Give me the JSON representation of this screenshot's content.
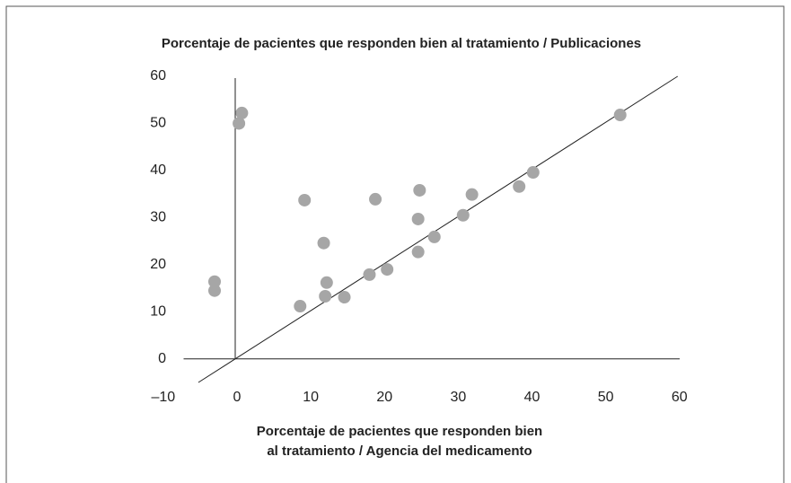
{
  "chart_data": {
    "type": "scatter",
    "title": "Porcentaje de pacientes que responden bien al tratamiento / Publicaciones",
    "xlabel": [
      "Porcentaje de pacientes que responden bien",
      "al tratamiento / Agencia del medicamento"
    ],
    "xlim": [
      -7,
      61
    ],
    "ylim": [
      -5,
      60
    ],
    "xticks": [
      {
        "value": -10,
        "label": "–10"
      },
      0,
      10,
      20,
      30,
      40,
      50,
      60
    ],
    "yticks": [
      0,
      10,
      20,
      30,
      40,
      50,
      60
    ],
    "grid": false,
    "reference_line": {
      "from": -5,
      "to": 60
    },
    "series": [
      {
        "color": "#a6a6a6",
        "x": [
          -2.8,
          -2.8,
          0.5,
          0.9,
          8.8,
          9.4,
          12,
          12.2,
          12.4,
          14.8,
          18.2,
          19,
          20.6,
          24.8,
          24.8,
          25,
          27,
          30.9,
          32.1,
          38.5,
          40.4,
          52.2
        ],
        "values": [
          16.4,
          14.5,
          50,
          52.2,
          11.2,
          33.7,
          24.6,
          13.3,
          16.2,
          13.1,
          17.9,
          33.9,
          19,
          22.7,
          29.7,
          35.8,
          25.9,
          30.5,
          34.9,
          36.6,
          39.6,
          51.8
        ]
      }
    ]
  }
}
